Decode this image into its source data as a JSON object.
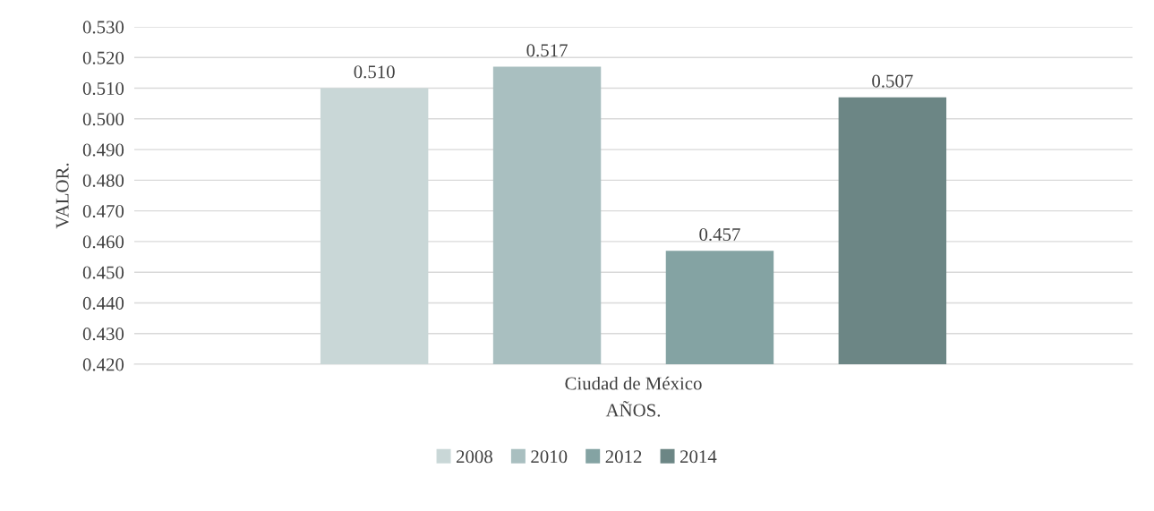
{
  "chart_data": {
    "type": "bar",
    "xlabel": "AÑOS.",
    "ylabel": "VALOR.",
    "categories": [
      "Ciudad de México"
    ],
    "series": [
      {
        "name": "2008",
        "color": "#c9d7d7",
        "values": [
          0.51
        ],
        "value_labels": [
          "0.510"
        ]
      },
      {
        "name": "2010",
        "color": "#a9bfc0",
        "values": [
          0.517
        ],
        "value_labels": [
          "0.517"
        ]
      },
      {
        "name": "2012",
        "color": "#84a3a3",
        "values": [
          0.457
        ],
        "value_labels": [
          "0.457"
        ]
      },
      {
        "name": "2014",
        "color": "#6c8685",
        "values": [
          0.507
        ],
        "value_labels": [
          "0.507"
        ]
      }
    ],
    "ylim": [
      0.42,
      0.53
    ],
    "yticks": [
      {
        "value": 0.42,
        "label": "0.420"
      },
      {
        "value": 0.43,
        "label": "0.430"
      },
      {
        "value": 0.44,
        "label": "0.440"
      },
      {
        "value": 0.45,
        "label": "0.450"
      },
      {
        "value": 0.46,
        "label": "0.460"
      },
      {
        "value": 0.47,
        "label": "0.470"
      },
      {
        "value": 0.48,
        "label": "0.480"
      },
      {
        "value": 0.49,
        "label": "0.490"
      },
      {
        "value": 0.5,
        "label": "0.500"
      },
      {
        "value": 0.51,
        "label": "0.510"
      },
      {
        "value": 0.52,
        "label": "0.520"
      },
      {
        "value": 0.53,
        "label": "0.530"
      }
    ],
    "grid": "y",
    "legend": "bottom"
  }
}
